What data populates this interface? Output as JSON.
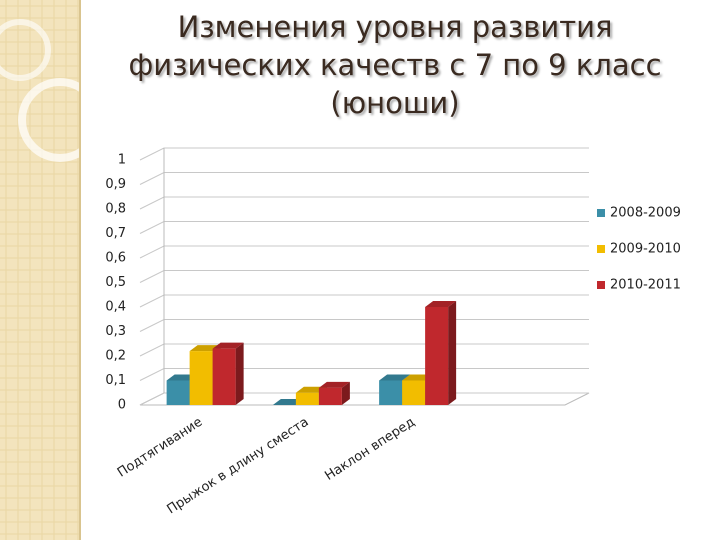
{
  "chart_data": {
    "type": "bar3d",
    "title": "Изменения уровня развития физических качеств с 7 по 9 класс (юноши)",
    "categories": [
      "Подтягивание",
      "Прыжок в длину сместа",
      "Наклон вперед",
      null
    ],
    "series": [
      {
        "name": "2008-2009",
        "color": "#3b8fa8",
        "values": [
          0.1,
          0,
          0.1,
          null
        ]
      },
      {
        "name": "2009-2010",
        "color": "#f2bd00",
        "values": [
          0.22,
          0.05,
          0.1,
          null
        ]
      },
      {
        "name": "2010-2011",
        "color": "#c0282d",
        "values": [
          0.23,
          0.07,
          0.4,
          null
        ]
      }
    ],
    "ylim": [
      0,
      1
    ],
    "yticks": [
      0,
      {
        "value": 0.1,
        "label": "0,1"
      },
      {
        "value": 0.2,
        "label": "0,2"
      },
      {
        "value": 0.3,
        "label": "0,3"
      },
      {
        "value": 0.4,
        "label": "0,4"
      },
      {
        "value": 0.5,
        "label": "0,5"
      },
      {
        "value": 0.6,
        "label": "0,6"
      },
      {
        "value": 0.7,
        "label": "0,7"
      },
      {
        "value": 0.8,
        "label": "0,8"
      },
      {
        "value": 0.9,
        "label": "0,9"
      },
      1
    ],
    "grid": true,
    "legend": "right"
  }
}
